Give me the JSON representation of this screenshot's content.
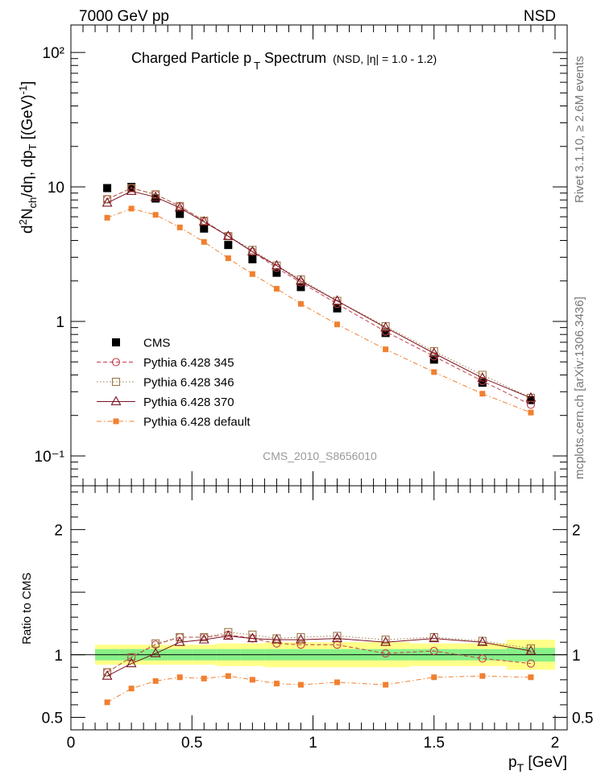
{
  "header": {
    "left": "7000 GeV pp",
    "right": "NSD"
  },
  "side": {
    "rivet": "Rivet 3.1.10, ≥ 2.6M events",
    "mcplots": "mcplots.cern.ch [arXiv:1306.3436]"
  },
  "watermark": "CMS_2010_S8656010",
  "chart_data": {
    "type": "scatter",
    "title": "Charged Particle p_T Spectrum",
    "title_parts": {
      "main": "Charged Particle p",
      "sub": "T",
      "rest": " Spectrum",
      "note": "(NSD, |η| = 1.0 - 1.2)"
    },
    "xlabel": "p_T [GeV]",
    "xlabel_parts": {
      "main": "p",
      "sub": "T",
      "rest": " [GeV]"
    },
    "ylabel": "d²N_ch/dη, dp_T [(GeV)⁻¹]",
    "ylabel_parts": {
      "a": "d",
      "a_sup": "2",
      "b": "N",
      "b_sub": "ch",
      "c": "/dη, dp",
      "c_sub": "T",
      "d": " [(GeV)",
      "d_sup": "-1",
      "e": "]"
    },
    "ratio_ylabel": "Ratio to CMS",
    "xlim": [
      0,
      2.05
    ],
    "ylim": [
      0.06,
      160
    ],
    "yscale": "log",
    "ratio_ylim": [
      0.4,
      2.35
    ],
    "x_ticks": [
      {
        "v": 0,
        "label": "0"
      },
      {
        "v": 0.5,
        "label": "0.5"
      },
      {
        "v": 1,
        "label": "1"
      },
      {
        "v": 1.5,
        "label": "1.5"
      },
      {
        "v": 2,
        "label": "2"
      }
    ],
    "y_ticks": [
      {
        "v": 0.1,
        "label": "10⁻¹"
      },
      {
        "v": 1,
        "label": "1"
      },
      {
        "v": 10,
        "label": "10"
      },
      {
        "v": 100,
        "label": "10²"
      }
    ],
    "ratio_ticks": [
      {
        "v": 0.5,
        "label": "0.5"
      },
      {
        "v": 1,
        "label": "1"
      },
      {
        "v": 2,
        "label": "2"
      }
    ],
    "legend_position": "lower-left",
    "x": [
      0.15,
      0.25,
      0.35,
      0.45,
      0.55,
      0.65,
      0.75,
      0.85,
      0.95,
      1.1,
      1.3,
      1.5,
      1.7,
      1.9
    ],
    "x_edges": [
      0.1,
      0.2,
      0.3,
      0.4,
      0.5,
      0.6,
      0.7,
      0.8,
      0.9,
      1.0,
      1.2,
      1.4,
      1.6,
      1.8,
      2.0
    ],
    "band_inner": [
      0.045,
      0.045,
      0.045,
      0.045,
      0.045,
      0.045,
      0.045,
      0.045,
      0.045,
      0.045,
      0.045,
      0.045,
      0.045,
      0.055
    ],
    "band_outer": [
      0.08,
      0.08,
      0.08,
      0.08,
      0.08,
      0.09,
      0.09,
      0.1,
      0.1,
      0.1,
      0.1,
      0.09,
      0.09,
      0.12
    ],
    "series": [
      {
        "name": "CMS",
        "marker": "filled-square",
        "line": "none",
        "color": "#000000",
        "values": [
          9.8,
          10.0,
          8.2,
          6.3,
          4.9,
          3.7,
          2.9,
          2.3,
          1.8,
          1.25,
          0.82,
          0.52,
          0.35,
          0.26
        ],
        "ratio": [
          1.0,
          1.0,
          1.0,
          1.0,
          1.0,
          1.0,
          1.0,
          1.0,
          1.0,
          1.0,
          1.0,
          1.0,
          1.0,
          1.0
        ]
      },
      {
        "name": "Pythia 6.428 345",
        "marker": "open-circle",
        "line": "dashed",
        "color": "#c0404c",
        "values": [
          8.1,
          9.8,
          8.8,
          7.2,
          5.6,
          4.3,
          3.3,
          2.5,
          1.95,
          1.35,
          0.84,
          0.55,
          0.36,
          0.24
        ],
        "ratio": [
          0.86,
          0.98,
          1.08,
          1.14,
          1.14,
          1.16,
          1.13,
          1.09,
          1.08,
          1.08,
          1.01,
          1.03,
          0.97,
          0.93
        ]
      },
      {
        "name": "Pythia 6.428 346",
        "marker": "open-square",
        "line": "dotted",
        "color": "#9b7a45",
        "values": [
          8.1,
          9.8,
          8.8,
          7.2,
          5.6,
          4.3,
          3.4,
          2.6,
          2.05,
          1.42,
          0.92,
          0.6,
          0.4,
          0.27
        ],
        "ratio": [
          0.86,
          0.98,
          1.09,
          1.14,
          1.14,
          1.18,
          1.16,
          1.13,
          1.14,
          1.15,
          1.12,
          1.14,
          1.11,
          1.05
        ]
      },
      {
        "name": "Pythia 6.428 370",
        "marker": "open-triangle",
        "line": "solid",
        "color": "#7a1020",
        "values": [
          7.6,
          9.3,
          8.4,
          7.0,
          5.5,
          4.3,
          3.3,
          2.6,
          2.0,
          1.42,
          0.9,
          0.58,
          0.38,
          0.27
        ],
        "ratio": [
          0.83,
          0.93,
          1.01,
          1.1,
          1.12,
          1.15,
          1.13,
          1.12,
          1.12,
          1.13,
          1.1,
          1.13,
          1.1,
          1.03
        ]
      },
      {
        "name": "Pythia 6.428 default",
        "marker": "small-filled-square",
        "line": "dashdot",
        "color": "#f08030",
        "values": [
          5.9,
          6.9,
          6.2,
          5.0,
          3.9,
          2.95,
          2.25,
          1.75,
          1.35,
          0.95,
          0.62,
          0.42,
          0.29,
          0.21
        ],
        "ratio": [
          0.62,
          0.73,
          0.79,
          0.82,
          0.81,
          0.83,
          0.8,
          0.77,
          0.76,
          0.78,
          0.76,
          0.82,
          0.83,
          0.82
        ]
      }
    ]
  }
}
